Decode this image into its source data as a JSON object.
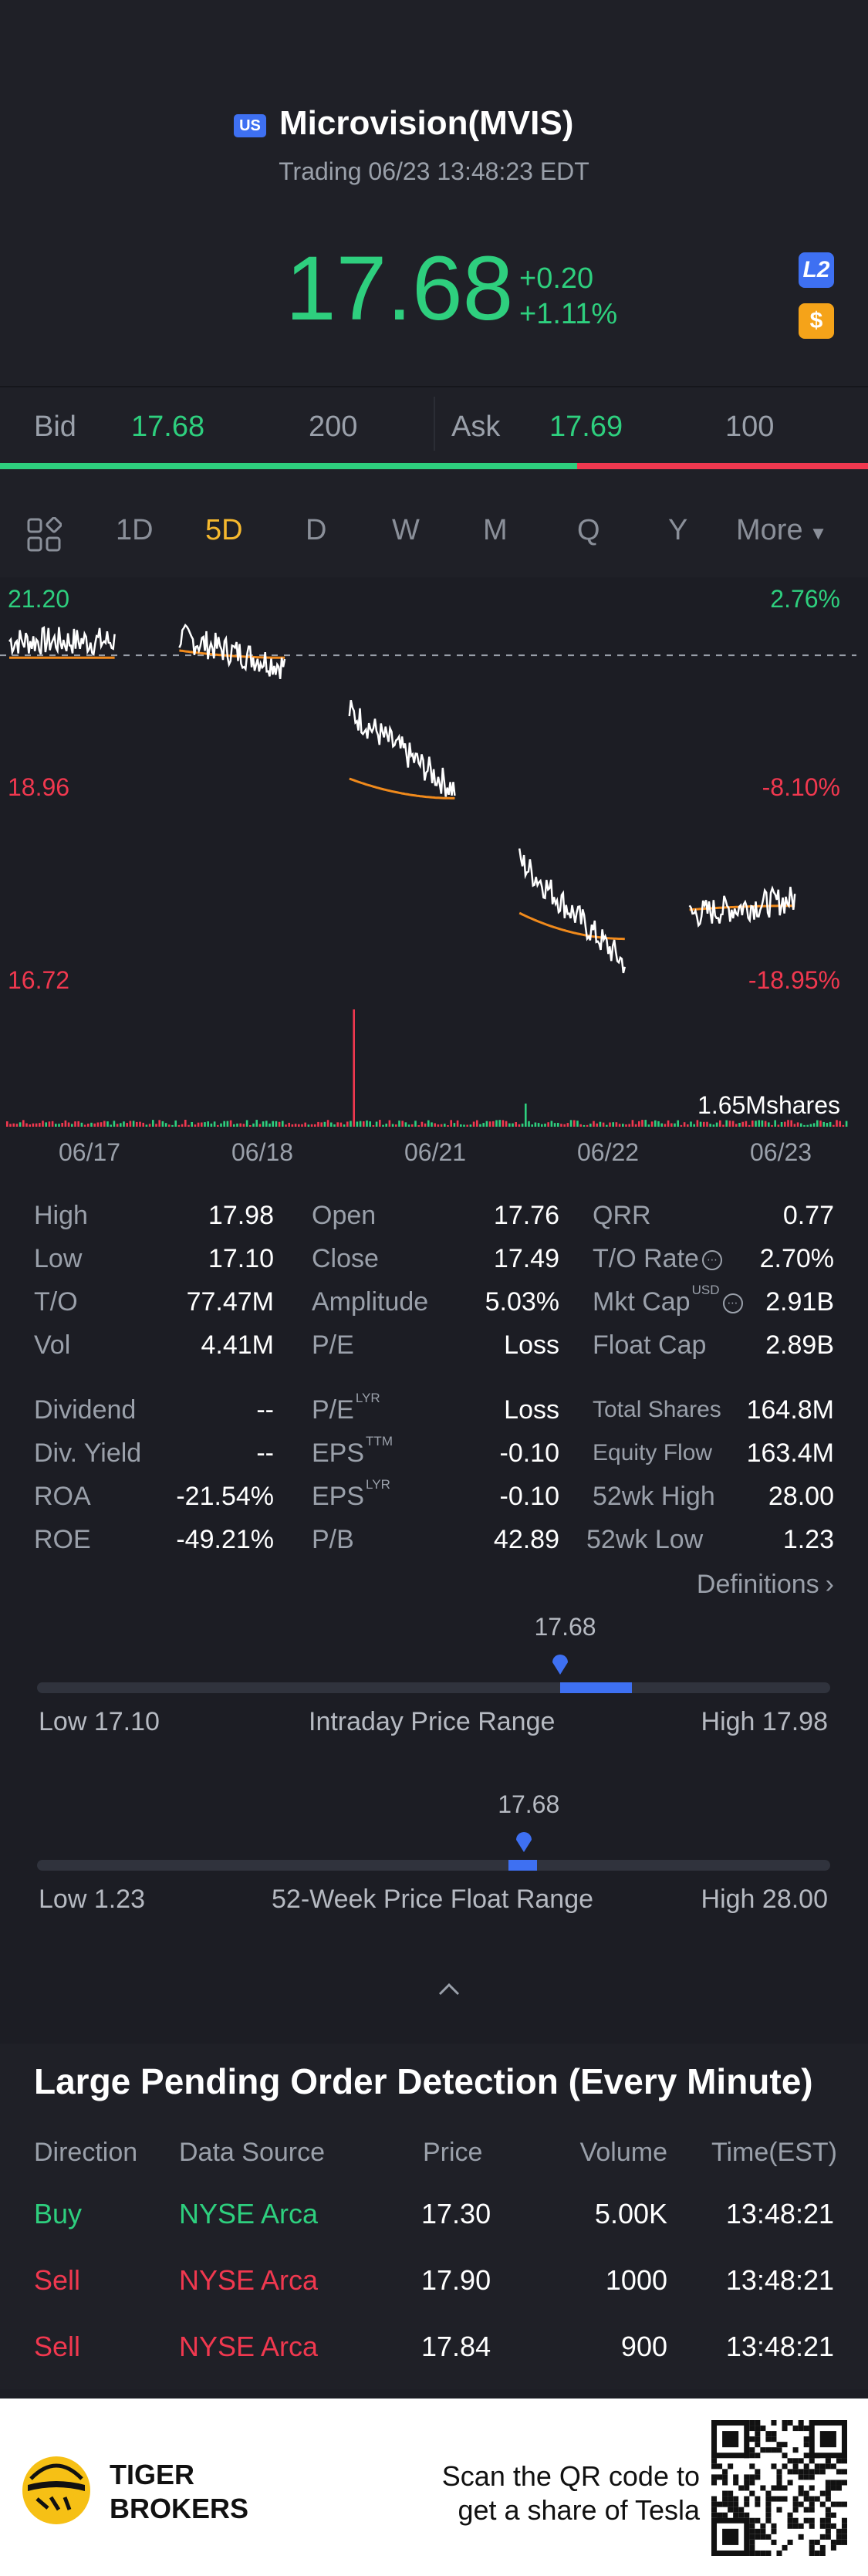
{
  "header": {
    "market_badge": "US",
    "title": "Microvision(MVIS)",
    "subtitle": "Trading 06/23 13:48:23 EDT",
    "price": "17.68",
    "change": "+0.20",
    "change_pct": "+1.11%",
    "l2_badge": "L2",
    "dollar_badge": "$"
  },
  "bid_ask": {
    "bid_label": "Bid",
    "bid_price": "17.68",
    "bid_size": "200",
    "ask_label": "Ask",
    "ask_price": "17.69",
    "ask_size": "100",
    "bid_share": 0.665
  },
  "tabs": {
    "items": [
      "1D",
      "5D",
      "D",
      "W",
      "M",
      "Q",
      "Y",
      "More"
    ],
    "active": "5D"
  },
  "chart": {
    "y_left": [
      "21.20",
      "18.96",
      "16.72"
    ],
    "y_right": [
      "2.76%",
      "-8.10%",
      "-18.95%"
    ],
    "volume_label": "1.65Mshares",
    "dates": [
      "06/17",
      "06/18",
      "06/21",
      "06/22",
      "06/23"
    ]
  },
  "chart_data": {
    "type": "line",
    "x": [
      "06/17",
      "06/18",
      "06/21",
      "06/22",
      "06/23"
    ],
    "ylim": [
      16.72,
      21.2
    ],
    "prev_close": 20.63,
    "series": [
      {
        "values": [
          20.8,
          20.5,
          19.0,
          16.9,
          17.68
        ]
      },
      {
        "values": [
          20.6,
          20.6,
          18.9,
          17.2,
          17.6
        ]
      }
    ]
  },
  "stats": {
    "col1": [
      {
        "label": "High",
        "value": "17.98"
      },
      {
        "label": "Low",
        "value": "17.10"
      },
      {
        "label": "T/O",
        "value": "77.47M"
      },
      {
        "label": "Vol",
        "value": "4.41M"
      }
    ],
    "col2": [
      {
        "label": "Open",
        "value": "17.76"
      },
      {
        "label": "Close",
        "value": "17.49"
      },
      {
        "label": "Amplitude",
        "value": "5.03%"
      },
      {
        "label": "P/E",
        "value": "Loss"
      }
    ],
    "col3": [
      {
        "label": "QRR",
        "value": "0.77"
      },
      {
        "label": "T/O Rate",
        "value": "2.70%"
      },
      {
        "label": "Mkt Cap",
        "value": "2.91B",
        "sup": "USD"
      },
      {
        "label": "Float Cap",
        "value": "2.89B"
      }
    ],
    "col1b": [
      {
        "label": "Dividend",
        "value": "--"
      },
      {
        "label": "Div. Yield",
        "value": "--"
      },
      {
        "label": "ROA",
        "value": "-21.54%"
      },
      {
        "label": "ROE",
        "value": "-49.21%"
      }
    ],
    "col2b": [
      {
        "label": "P/E",
        "value": "Loss",
        "sup": "LYR"
      },
      {
        "label": "EPS",
        "value": "-0.10",
        "sup": "TTM"
      },
      {
        "label": "EPS",
        "value": "-0.10",
        "sup": "LYR"
      },
      {
        "label": "P/B",
        "value": "42.89"
      }
    ],
    "col3b": [
      {
        "label": "Total Shares",
        "value": "164.8M"
      },
      {
        "label": "Equity Flow",
        "value": "163.4M"
      },
      {
        "label": "52wk High",
        "value": "28.00"
      },
      {
        "label": "52wk Low",
        "value": "1.23"
      }
    ],
    "definitions": "Definitions"
  },
  "intraday_range": {
    "current": "17.68",
    "low": "Low 17.10",
    "title": "Intraday Price Range",
    "high": "High 17.98",
    "fraction": 0.66
  },
  "week52_range": {
    "current": "17.68",
    "low": "Low 1.23",
    "title": "52-Week Price Float Range",
    "high": "High 28.00",
    "fraction": 0.614
  },
  "orders": {
    "title": "Large Pending Order Detection (Every Minute)",
    "headers": [
      "Direction",
      "Data Source",
      "Price",
      "Volume",
      "Time(EST)"
    ],
    "rows": [
      {
        "direction": "Buy",
        "source": "NYSE Arca",
        "price": "17.30",
        "volume": "5.00K",
        "time": "13:48:21"
      },
      {
        "direction": "Sell",
        "source": "NYSE Arca",
        "price": "17.90",
        "volume": "1000",
        "time": "13:48:21"
      },
      {
        "direction": "Sell",
        "source": "NYSE Arca",
        "price": "17.84",
        "volume": "900",
        "time": "13:48:21"
      }
    ]
  },
  "footer": {
    "brand_line1": "TIGER",
    "brand_line2": "BROKERS",
    "scan_line1": "Scan the QR code to",
    "scan_line2": "get a share of Tesla"
  },
  "colors": {
    "up": "#2ecf7e",
    "down": "#f0384f",
    "accent": "#3e70f2",
    "active_tab": "#f5b82e",
    "avg_line": "#f08a1c"
  }
}
